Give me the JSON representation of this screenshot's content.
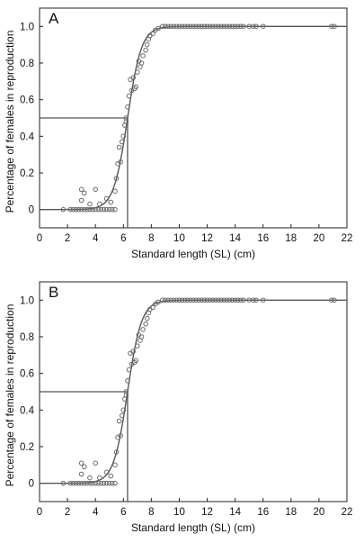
{
  "chart_data": [
    {
      "type": "scatter",
      "panel_label": "A",
      "xlabel": "Standard length (SL) (cm)",
      "ylabel": "Percentage of females in reproduction",
      "xlim": [
        0,
        22
      ],
      "ylim": [
        -0.1,
        1.1
      ],
      "x_ticks": [
        "0",
        "2",
        "4",
        "6",
        "8",
        "10",
        "12",
        "14",
        "16",
        "18",
        "20",
        "22"
      ],
      "y_ticks": [
        "0",
        "0.2",
        "0.4",
        "0.6",
        "0.8",
        "1.0"
      ],
      "grid": false,
      "legend": "none",
      "fitted_curve": {
        "type": "logistic",
        "l50": 6.3,
        "slope": 2.0
      },
      "l50_reference": {
        "x": 6.3,
        "y": 0.5
      },
      "series": [
        {
          "points": [
            [
              1.7,
              0
            ],
            [
              2.2,
              0
            ],
            [
              2.4,
              0
            ],
            [
              2.6,
              0
            ],
            [
              2.8,
              0
            ],
            [
              3.0,
              0
            ],
            [
              3.2,
              0
            ],
            [
              3.4,
              0
            ],
            [
              3.6,
              0
            ],
            [
              3.8,
              0
            ],
            [
              4.0,
              0
            ],
            [
              4.2,
              0
            ],
            [
              4.4,
              0
            ],
            [
              4.6,
              0
            ],
            [
              4.8,
              0
            ],
            [
              5.0,
              0
            ],
            [
              5.2,
              0
            ],
            [
              5.4,
              0
            ],
            [
              3.0,
              0.11
            ],
            [
              3.2,
              0.09
            ],
            [
              3.0,
              0.05
            ],
            [
              3.6,
              0.03
            ],
            [
              4.0,
              0.11
            ],
            [
              4.3,
              0.03
            ],
            [
              4.8,
              0.06
            ],
            [
              5.1,
              0.04
            ],
            [
              5.4,
              0.1
            ],
            [
              5.5,
              0.17
            ],
            [
              5.6,
              0.25
            ],
            [
              5.7,
              0.34
            ],
            [
              5.8,
              0.26
            ],
            [
              5.9,
              0.37
            ],
            [
              6.0,
              0.4
            ],
            [
              6.1,
              0.46
            ],
            [
              6.2,
              0.5
            ],
            [
              6.2,
              0.48
            ],
            [
              6.3,
              0.56
            ],
            [
              6.4,
              0.62
            ],
            [
              6.5,
              0.71
            ],
            [
              6.6,
              0.65
            ],
            [
              6.7,
              0.72
            ],
            [
              6.8,
              0.66
            ],
            [
              6.9,
              0.67
            ],
            [
              7.0,
              0.75
            ],
            [
              7.1,
              0.81
            ],
            [
              7.2,
              0.78
            ],
            [
              7.3,
              0.8
            ],
            [
              7.4,
              0.84
            ],
            [
              7.6,
              0.87
            ],
            [
              7.7,
              0.9
            ],
            [
              7.8,
              0.93
            ],
            [
              7.9,
              0.95
            ],
            [
              8.1,
              0.96
            ],
            [
              8.3,
              0.98
            ],
            [
              8.5,
              0.99
            ],
            [
              8.8,
              1.0
            ],
            [
              9.0,
              1.0
            ],
            [
              9.2,
              1.0
            ],
            [
              9.4,
              1.0
            ],
            [
              9.6,
              1.0
            ],
            [
              9.8,
              1.0
            ],
            [
              10.0,
              1.0
            ],
            [
              10.2,
              1.0
            ],
            [
              10.4,
              1.0
            ],
            [
              10.6,
              1.0
            ],
            [
              10.8,
              1.0
            ],
            [
              11.0,
              1.0
            ],
            [
              11.2,
              1.0
            ],
            [
              11.4,
              1.0
            ],
            [
              11.6,
              1.0
            ],
            [
              11.8,
              1.0
            ],
            [
              12.0,
              1.0
            ],
            [
              12.2,
              1.0
            ],
            [
              12.4,
              1.0
            ],
            [
              12.6,
              1.0
            ],
            [
              12.8,
              1.0
            ],
            [
              13.0,
              1.0
            ],
            [
              13.2,
              1.0
            ],
            [
              13.4,
              1.0
            ],
            [
              13.6,
              1.0
            ],
            [
              13.8,
              1.0
            ],
            [
              14.0,
              1.0
            ],
            [
              14.2,
              1.0
            ],
            [
              14.4,
              1.0
            ],
            [
              14.6,
              1.0
            ],
            [
              15.0,
              1.0
            ],
            [
              15.3,
              1.0
            ],
            [
              15.5,
              1.0
            ],
            [
              16.0,
              1.0
            ],
            [
              20.9,
              1.0
            ],
            [
              21.1,
              1.0
            ]
          ]
        }
      ]
    },
    {
      "type": "scatter",
      "panel_label": "B",
      "xlabel": "Standard length (SL) (cm)",
      "ylabel": "Percentage of females in reproduction",
      "xlim": [
        0,
        22
      ],
      "ylim": [
        -0.1,
        1.1
      ],
      "x_ticks": [
        "0",
        "2",
        "4",
        "6",
        "8",
        "10",
        "12",
        "14",
        "16",
        "18",
        "20",
        "22"
      ],
      "y_ticks": [
        "0",
        "0.2",
        "0.4",
        "0.6",
        "0.8",
        "1.0"
      ],
      "grid": false,
      "legend": "none",
      "fitted_curve": {
        "type": "logistic",
        "l50": 6.3,
        "slope": 2.0
      },
      "l50_reference": {
        "x": 6.3,
        "y": 0.5
      },
      "series": [
        {
          "points": [
            [
              1.7,
              0
            ],
            [
              2.2,
              0
            ],
            [
              2.4,
              0
            ],
            [
              2.6,
              0
            ],
            [
              2.8,
              0
            ],
            [
              3.0,
              0
            ],
            [
              3.2,
              0
            ],
            [
              3.4,
              0
            ],
            [
              3.6,
              0
            ],
            [
              3.8,
              0
            ],
            [
              4.0,
              0
            ],
            [
              4.2,
              0
            ],
            [
              4.4,
              0
            ],
            [
              4.6,
              0
            ],
            [
              4.8,
              0
            ],
            [
              5.0,
              0
            ],
            [
              5.2,
              0
            ],
            [
              5.4,
              0
            ],
            [
              3.0,
              0.11
            ],
            [
              3.2,
              0.09
            ],
            [
              3.0,
              0.05
            ],
            [
              3.6,
              0.03
            ],
            [
              4.0,
              0.11
            ],
            [
              4.3,
              0.03
            ],
            [
              4.8,
              0.06
            ],
            [
              5.1,
              0.04
            ],
            [
              5.4,
              0.1
            ],
            [
              5.5,
              0.17
            ],
            [
              5.6,
              0.25
            ],
            [
              5.7,
              0.34
            ],
            [
              5.8,
              0.26
            ],
            [
              5.9,
              0.37
            ],
            [
              6.0,
              0.4
            ],
            [
              6.1,
              0.46
            ],
            [
              6.2,
              0.5
            ],
            [
              6.2,
              0.48
            ],
            [
              6.3,
              0.56
            ],
            [
              6.4,
              0.62
            ],
            [
              6.5,
              0.71
            ],
            [
              6.6,
              0.65
            ],
            [
              6.7,
              0.72
            ],
            [
              6.8,
              0.66
            ],
            [
              6.9,
              0.67
            ],
            [
              7.0,
              0.75
            ],
            [
              7.1,
              0.81
            ],
            [
              7.2,
              0.78
            ],
            [
              7.3,
              0.8
            ],
            [
              7.4,
              0.84
            ],
            [
              7.6,
              0.87
            ],
            [
              7.7,
              0.9
            ],
            [
              7.8,
              0.93
            ],
            [
              7.9,
              0.95
            ],
            [
              8.1,
              0.96
            ],
            [
              8.3,
              0.98
            ],
            [
              8.5,
              0.99
            ],
            [
              8.8,
              1.0
            ],
            [
              9.0,
              1.0
            ],
            [
              9.2,
              1.0
            ],
            [
              9.4,
              1.0
            ],
            [
              9.6,
              1.0
            ],
            [
              9.8,
              1.0
            ],
            [
              10.0,
              1.0
            ],
            [
              10.2,
              1.0
            ],
            [
              10.4,
              1.0
            ],
            [
              10.6,
              1.0
            ],
            [
              10.8,
              1.0
            ],
            [
              11.0,
              1.0
            ],
            [
              11.2,
              1.0
            ],
            [
              11.4,
              1.0
            ],
            [
              11.6,
              1.0
            ],
            [
              11.8,
              1.0
            ],
            [
              12.0,
              1.0
            ],
            [
              12.2,
              1.0
            ],
            [
              12.4,
              1.0
            ],
            [
              12.6,
              1.0
            ],
            [
              12.8,
              1.0
            ],
            [
              13.0,
              1.0
            ],
            [
              13.2,
              1.0
            ],
            [
              13.4,
              1.0
            ],
            [
              13.6,
              1.0
            ],
            [
              13.8,
              1.0
            ],
            [
              14.0,
              1.0
            ],
            [
              14.2,
              1.0
            ],
            [
              14.4,
              1.0
            ],
            [
              14.6,
              1.0
            ],
            [
              15.0,
              1.0
            ],
            [
              15.3,
              1.0
            ],
            [
              15.5,
              1.0
            ],
            [
              16.0,
              1.0
            ],
            [
              20.9,
              1.0
            ],
            [
              21.1,
              1.0
            ]
          ]
        }
      ]
    }
  ],
  "colors": {
    "axis": "#222222",
    "curve": "#555555",
    "marker_stroke": "#6a6a6a",
    "reference_line": "#555555"
  }
}
